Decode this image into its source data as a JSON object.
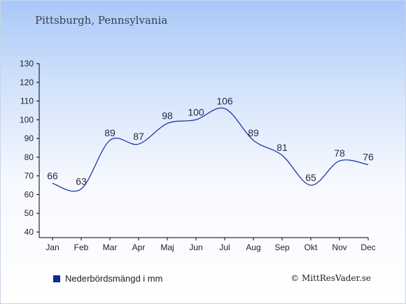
{
  "city_title": "Pittsburgh, Pennsylvania",
  "legend_label": "Nederbördsmängd i mm",
  "credit": "© MittResVader.se",
  "colors": {
    "line": "#0b2a9c",
    "axis": "#000000",
    "label": "#1f2a44"
  },
  "chart_data": {
    "type": "line",
    "categories": [
      "Jan",
      "Feb",
      "Mar",
      "Apr",
      "Maj",
      "Jun",
      "Jul",
      "Aug",
      "Sep",
      "Okt",
      "Nov",
      "Dec"
    ],
    "series": [
      {
        "name": "Nederbördsmängd i mm",
        "values": [
          66,
          63,
          89,
          87,
          98,
          100,
          106,
          89,
          81,
          65,
          78,
          76
        ]
      }
    ],
    "yticks": [
      40,
      50,
      60,
      70,
      80,
      90,
      100,
      110,
      120,
      130
    ],
    "ylim": [
      40,
      130
    ],
    "grid": false,
    "legend": "bottom-left"
  }
}
